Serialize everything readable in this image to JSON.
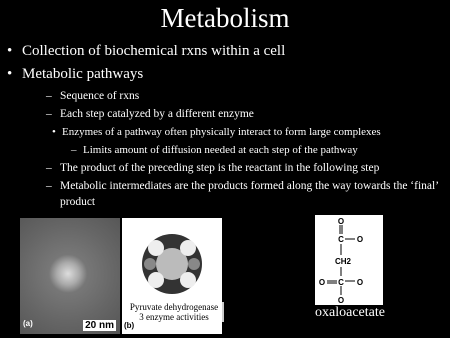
{
  "slide": {
    "title": "Metabolism",
    "bullets": [
      {
        "text": "Collection of biochemical rxns within a cell"
      },
      {
        "text": "Metabolic pathways",
        "items": [
          {
            "text": "Sequence of rxns"
          },
          {
            "text": "Each step catalyzed by a different enzyme",
            "items": [
              {
                "text": "Enzymes of a pathway often physically interact to form large complexes",
                "items": [
                  {
                    "text": "Limits amount of diffusion needed at each step of the pathway"
                  }
                ]
              }
            ]
          },
          {
            "text": "The product of the preceding step is the reactant in the following step"
          },
          {
            "text": "Metabolic intermediates are the products formed along the way towards the ‘final’ product"
          }
        ]
      }
    ],
    "figure": {
      "panel_a": "(a)",
      "scale_bar": "20 nm",
      "panel_b": "(b)",
      "caption": [
        "Pyruvate dehydrogenase",
        "3 enzyme activities"
      ]
    },
    "structure": {
      "atoms": [
        "O",
        "C",
        "O",
        "CH2",
        "C",
        "O",
        "O",
        "O"
      ],
      "label": "oxaloacetate"
    }
  }
}
